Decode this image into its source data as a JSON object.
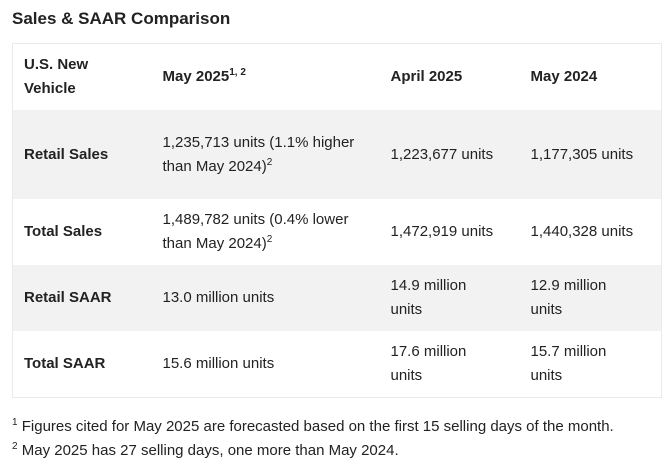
{
  "title": "Sales & SAAR Comparison",
  "table": {
    "headers": [
      {
        "text": "U.S. New Vehicle",
        "sup": ""
      },
      {
        "text": "May 2025",
        "sup": "1, 2"
      },
      {
        "text": "April 2025",
        "sup": ""
      },
      {
        "text": "May 2024",
        "sup": ""
      }
    ],
    "rows": [
      {
        "label": "Retail Sales",
        "may2025": "1,235,713 units (1.1% higher than May 2024)",
        "may2025_sup": "2",
        "april2025": "1,223,677 units",
        "may2024": "1,177,305 units"
      },
      {
        "label": "Total Sales",
        "may2025": "1,489,782 units (0.4% lower than May 2024)",
        "may2025_sup": "2",
        "april2025": "1,472,919 units",
        "may2024": "1,440,328 units"
      },
      {
        "label": "Retail SAAR",
        "may2025": "13.0 million units",
        "may2025_sup": "",
        "april2025": "14.9 million units",
        "may2024": "12.9 million units"
      },
      {
        "label": "Total SAAR",
        "may2025": "15.6 million units",
        "may2025_sup": "",
        "april2025": "17.6 million units",
        "may2024": "15.7 million units"
      }
    ]
  },
  "footnotes": [
    {
      "mark": "1",
      "text": "Figures cited for May 2025 are forecasted based on the first 15 selling days of the month."
    },
    {
      "mark": "2",
      "text": "May 2025 has 27 selling days, one more than May 2024."
    }
  ]
}
